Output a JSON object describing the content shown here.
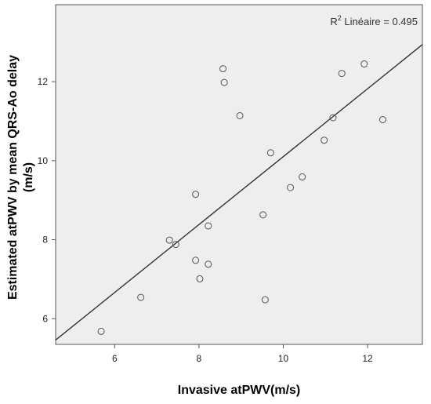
{
  "chart_data": {
    "type": "scatter",
    "xlabel": "Invasive atPWV(m/s)",
    "ylabel_line1": "Estimated atPWV by mean QRS-Ao delay",
    "ylabel_line2": "(m/s)",
    "xlim": [
      4.6,
      13.3
    ],
    "ylim": [
      5.35,
      13.95
    ],
    "x_ticks": [
      6,
      8,
      10,
      12
    ],
    "y_ticks": [
      6,
      8,
      10,
      12
    ],
    "grid": false,
    "annotation": {
      "base": "R",
      "sup": "2",
      "rest": " Linéaire = 0.495"
    },
    "points": [
      {
        "x": 5.68,
        "y": 5.68
      },
      {
        "x": 6.62,
        "y": 6.54
      },
      {
        "x": 7.3,
        "y": 7.99
      },
      {
        "x": 7.45,
        "y": 7.88
      },
      {
        "x": 7.92,
        "y": 9.15
      },
      {
        "x": 7.92,
        "y": 7.48
      },
      {
        "x": 8.02,
        "y": 7.01
      },
      {
        "x": 8.22,
        "y": 8.35
      },
      {
        "x": 8.22,
        "y": 7.38
      },
      {
        "x": 8.57,
        "y": 12.33
      },
      {
        "x": 8.6,
        "y": 11.98
      },
      {
        "x": 8.97,
        "y": 11.14
      },
      {
        "x": 9.52,
        "y": 8.63
      },
      {
        "x": 9.57,
        "y": 6.48
      },
      {
        "x": 9.7,
        "y": 10.2
      },
      {
        "x": 10.17,
        "y": 9.32
      },
      {
        "x": 10.45,
        "y": 9.59
      },
      {
        "x": 10.97,
        "y": 10.52
      },
      {
        "x": 11.18,
        "y": 11.09
      },
      {
        "x": 11.39,
        "y": 12.21
      },
      {
        "x": 11.92,
        "y": 12.45
      },
      {
        "x": 12.36,
        "y": 11.04
      }
    ],
    "fit_line": {
      "x": [
        4.6,
        13.3
      ],
      "y": [
        5.46,
        12.94
      ]
    },
    "colors": {
      "plot_bg": "#eeeeee",
      "marker": "#555555",
      "line": "#333333"
    }
  }
}
